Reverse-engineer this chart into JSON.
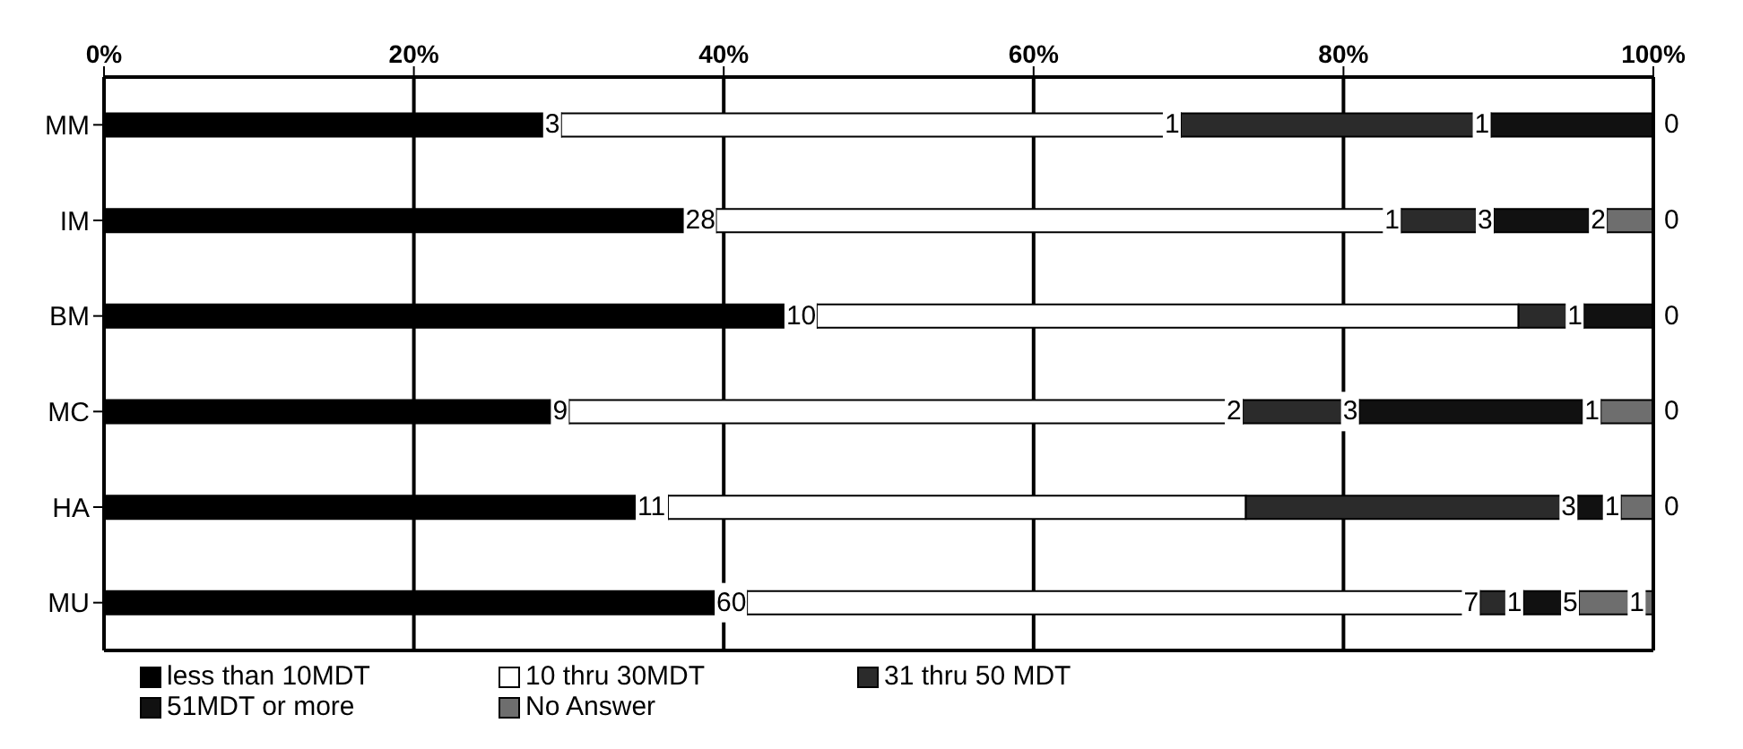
{
  "chart_data": {
    "type": "bar",
    "orientation": "horizontal",
    "stacked": true,
    "categories": [
      "MM",
      "IM",
      "BM",
      "MC",
      "HA",
      "MU"
    ],
    "series": [
      {
        "name": "less than 10MDT",
        "color": "#000000",
        "values": [
          29.5,
          39.5,
          46,
          30,
          36.4,
          41.5
        ]
      },
      {
        "name": "10 thru 30MDT",
        "color": "#ffffff",
        "values": [
          40,
          44.2,
          45.3,
          43.5,
          37.3,
          47.3
        ]
      },
      {
        "name": "31 thru 50 MDT",
        "color": "#2b2b2b",
        "values": [
          20,
          6,
          4.2,
          7.5,
          21.4,
          2.8
        ]
      },
      {
        "name": "51MDT or more",
        "color": "#111111",
        "values": [
          10.5,
          7.3,
          4.5,
          15.6,
          2.8,
          3.6
        ]
      },
      {
        "name": "No Answer",
        "color": "#6e6e6e",
        "values": [
          0,
          3,
          0,
          3.4,
          2.1,
          4.8
        ]
      }
    ],
    "annotations": [
      {
        "text": "3",
        "x": 29.5,
        "y": "MM"
      },
      {
        "text": "1",
        "x": 69.5,
        "y": "MM"
      },
      {
        "text": "1",
        "x": 89.5,
        "y": "MM"
      },
      {
        "text": "0",
        "x": 100,
        "y": "MM"
      },
      {
        "text": "28",
        "x": 39.5,
        "y": "IM"
      },
      {
        "text": "1",
        "x": 83.7,
        "y": "IM"
      },
      {
        "text": "3",
        "x": 89.7,
        "y": "IM"
      },
      {
        "text": "2",
        "x": 97,
        "y": "IM"
      },
      {
        "text": "0",
        "x": 100,
        "y": "IM"
      },
      {
        "text": "10",
        "x": 46,
        "y": "BM"
      },
      {
        "text": "1",
        "x": 95.5,
        "y": "BM"
      },
      {
        "text": "0",
        "x": 100,
        "y": "BM"
      },
      {
        "text": "9",
        "x": 30,
        "y": "MC"
      },
      {
        "text": "2",
        "x": 73.5,
        "y": "MC"
      },
      {
        "text": "3",
        "x": 81,
        "y": "MC"
      },
      {
        "text": "1",
        "x": 96.6,
        "y": "MC"
      },
      {
        "text": "0",
        "x": 100,
        "y": "MC"
      },
      {
        "text": "11",
        "x": 36.4,
        "y": "HA"
      },
      {
        "text": "3",
        "x": 95.1,
        "y": "HA"
      },
      {
        "text": "1",
        "x": 97.9,
        "y": "HA"
      },
      {
        "text": "0",
        "x": 100,
        "y": "HA"
      },
      {
        "text": "60",
        "x": 41.5,
        "y": "MU"
      },
      {
        "text": "7",
        "x": 88.8,
        "y": "MU"
      },
      {
        "text": "1",
        "x": 91.6,
        "y": "MU"
      },
      {
        "text": "5",
        "x": 95.2,
        "y": "MU"
      },
      {
        "text": "1",
        "x": 99.5,
        "y": "MU"
      }
    ],
    "xlim": [
      0,
      100
    ],
    "xticks": [
      {
        "value": 0,
        "label": "0%"
      },
      {
        "value": 20,
        "label": "20%"
      },
      {
        "value": 40,
        "label": "40%"
      },
      {
        "value": 60,
        "label": "60%"
      },
      {
        "value": 80,
        "label": "80%"
      },
      {
        "value": 100,
        "label": "100%"
      }
    ],
    "grid": "x",
    "legend": "bottom"
  }
}
